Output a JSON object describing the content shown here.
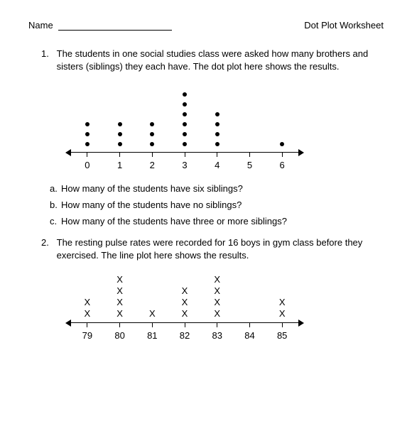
{
  "header": {
    "name_label": "Name",
    "title": "Dot Plot Worksheet"
  },
  "q1": {
    "number": "1.",
    "text": "The students in one social studies class were asked how many brothers and sisters (siblings) they each have. The dot plot here shows the results."
  },
  "plot1": {
    "type": "dotplot",
    "categories": [
      "0",
      "1",
      "2",
      "3",
      "4",
      "5",
      "6"
    ],
    "counts": [
      3,
      3,
      3,
      6,
      4,
      0,
      1
    ],
    "dot_color": "#000000",
    "axis_color": "#000000",
    "background_color": "#ffffff",
    "label_fontsize": 13
  },
  "subquestions": [
    {
      "label": "a.",
      "text": "How many of the students have six siblings?"
    },
    {
      "label": "b.",
      "text": "How many of the students have no siblings?"
    },
    {
      "label": "c.",
      "text": "How many of the students have three or more siblings?"
    }
  ],
  "q2": {
    "number": "2.",
    "text": "The resting pulse rates were recorded for 16 boys in gym class before they exercised.  The line plot here shows the results."
  },
  "plot2": {
    "type": "lineplot",
    "marker": "X",
    "categories": [
      "79",
      "80",
      "81",
      "82",
      "83",
      "84",
      "85"
    ],
    "counts": [
      2,
      4,
      1,
      3,
      4,
      0,
      2
    ],
    "marker_color": "#000000",
    "axis_color": "#000000",
    "background_color": "#ffffff",
    "label_fontsize": 13
  }
}
